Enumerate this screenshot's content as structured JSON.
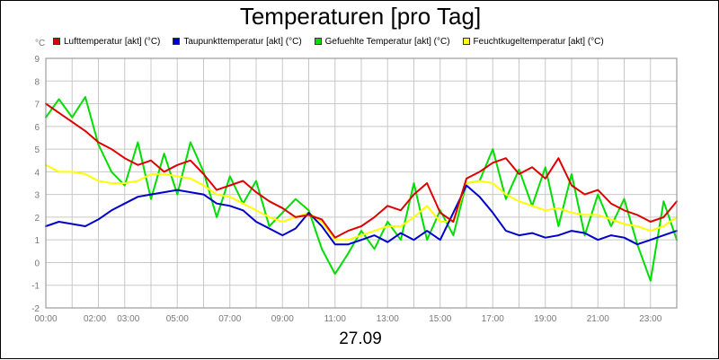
{
  "chart_data": {
    "type": "line",
    "title": "Temperaturen [pro Tag]",
    "xlabel": "27.09",
    "ylabel": "°C",
    "ylim": [
      -2,
      9
    ],
    "xlim_hours": [
      0,
      24
    ],
    "grid": true,
    "legend_position": "top",
    "x_tick_labels": [
      "00:00",
      "02:00",
      "03:00",
      "05:00",
      "07:00",
      "09:00",
      "11:00",
      "13:00",
      "15:00",
      "17:00",
      "19:00",
      "21:00",
      "23:00"
    ],
    "x_tick_hours": [
      0,
      2,
      3,
      5,
      7,
      9,
      11,
      13,
      15,
      17,
      19,
      21,
      23
    ],
    "y_ticks": [
      -2,
      -1,
      0,
      1,
      2,
      3,
      4,
      5,
      6,
      7,
      8,
      9
    ],
    "series": [
      {
        "name": "Lufttemperatur [akt] (°C)",
        "color": "#dd0000",
        "x": [
          0,
          0.5,
          1,
          1.5,
          2,
          2.5,
          3,
          3.5,
          4,
          4.5,
          5,
          5.5,
          6,
          6.5,
          7,
          7.5,
          8,
          8.5,
          9,
          9.5,
          10,
          10.5,
          11,
          11.5,
          12,
          12.5,
          13,
          13.5,
          14,
          14.5,
          15,
          15.5,
          16,
          16.5,
          17,
          17.5,
          18,
          18.5,
          19,
          19.5,
          20,
          20.5,
          21,
          21.5,
          22,
          22.5,
          23,
          23.5,
          24
        ],
        "y": [
          7.0,
          6.6,
          6.2,
          5.8,
          5.3,
          5.0,
          4.6,
          4.3,
          4.5,
          4.0,
          4.3,
          4.5,
          3.9,
          3.2,
          3.4,
          3.6,
          3.1,
          2.7,
          2.4,
          2.0,
          2.1,
          1.9,
          1.1,
          1.4,
          1.6,
          2.0,
          2.5,
          2.3,
          3.0,
          3.5,
          2.2,
          1.8,
          3.7,
          4.0,
          4.4,
          4.6,
          3.9,
          4.2,
          3.7,
          4.6,
          3.4,
          3.0,
          3.2,
          2.6,
          2.3,
          2.1,
          1.8,
          2.0,
          2.7
        ]
      },
      {
        "name": "Taupunkttemperatur [akt] (°C)",
        "color": "#0000cc",
        "x": [
          0,
          0.5,
          1,
          1.5,
          2,
          2.5,
          3,
          3.5,
          4,
          4.5,
          5,
          5.5,
          6,
          6.5,
          7,
          7.5,
          8,
          8.5,
          9,
          9.5,
          10,
          10.5,
          11,
          11.5,
          12,
          12.5,
          13,
          13.5,
          14,
          14.5,
          15,
          15.5,
          16,
          16.5,
          17,
          17.5,
          18,
          18.5,
          19,
          19.5,
          20,
          20.5,
          21,
          21.5,
          22,
          22.5,
          23,
          23.5,
          24
        ],
        "y": [
          1.6,
          1.8,
          1.7,
          1.6,
          1.9,
          2.3,
          2.6,
          2.9,
          3.0,
          3.1,
          3.2,
          3.1,
          3.0,
          2.6,
          2.5,
          2.3,
          1.8,
          1.5,
          1.2,
          1.5,
          2.2,
          1.6,
          0.8,
          0.8,
          1.0,
          1.2,
          0.9,
          1.3,
          1.0,
          1.4,
          1.0,
          2.2,
          3.4,
          2.9,
          2.2,
          1.4,
          1.2,
          1.3,
          1.1,
          1.2,
          1.4,
          1.3,
          1.0,
          1.2,
          1.1,
          0.8,
          1.0,
          1.2,
          1.4
        ]
      },
      {
        "name": "Gefuehlte Temperatur [akt] (°C)",
        "color": "#00dd00",
        "x": [
          0,
          0.5,
          1,
          1.5,
          2,
          2.5,
          3,
          3.5,
          4,
          4.5,
          5,
          5.5,
          6,
          6.5,
          7,
          7.5,
          8,
          8.5,
          9,
          9.5,
          10,
          10.5,
          11,
          11.5,
          12,
          12.5,
          13,
          13.5,
          14,
          14.5,
          15,
          15.5,
          16,
          16.5,
          17,
          17.5,
          18,
          18.5,
          19,
          19.5,
          20,
          20.5,
          21,
          21.5,
          22,
          22.5,
          23,
          23.5,
          24
        ],
        "y": [
          6.4,
          7.2,
          6.4,
          7.3,
          5.2,
          4.0,
          3.4,
          5.3,
          2.8,
          4.8,
          3.0,
          5.3,
          4.0,
          2.0,
          3.8,
          2.6,
          3.6,
          1.6,
          2.2,
          2.8,
          2.3,
          0.6,
          -0.5,
          0.4,
          1.4,
          0.6,
          1.8,
          1.0,
          3.5,
          1.0,
          2.3,
          1.2,
          3.5,
          3.6,
          5.0,
          2.8,
          4.1,
          2.5,
          4.2,
          1.6,
          3.9,
          1.2,
          3.0,
          1.6,
          2.8,
          0.8,
          -0.8,
          2.7,
          1.0
        ]
      },
      {
        "name": "Feuchtkugeltemperatur [akt] (°C)",
        "color": "#ffff00",
        "x": [
          0,
          0.5,
          1,
          1.5,
          2,
          2.5,
          3,
          3.5,
          4,
          4.5,
          5,
          5.5,
          6,
          6.5,
          7,
          7.5,
          8,
          8.5,
          9,
          9.5,
          10,
          10.5,
          11,
          11.5,
          12,
          12.5,
          13,
          13.5,
          14,
          14.5,
          15,
          15.5,
          16,
          16.5,
          17,
          17.5,
          18,
          18.5,
          19,
          19.5,
          20,
          20.5,
          21,
          21.5,
          22,
          22.5,
          23,
          23.5,
          24
        ],
        "y": [
          4.3,
          4.0,
          4.0,
          3.9,
          3.6,
          3.5,
          3.5,
          3.6,
          3.9,
          3.9,
          3.8,
          3.7,
          3.4,
          3.0,
          2.9,
          2.6,
          2.3,
          2.0,
          1.8,
          2.0,
          2.2,
          1.8,
          1.0,
          1.0,
          1.2,
          1.4,
          1.6,
          1.6,
          2.0,
          2.5,
          1.8,
          1.8,
          3.5,
          3.6,
          3.5,
          3.0,
          2.7,
          2.5,
          2.3,
          2.4,
          2.2,
          2.1,
          2.1,
          1.9,
          1.7,
          1.6,
          1.4,
          1.6,
          2.0
        ]
      }
    ]
  }
}
